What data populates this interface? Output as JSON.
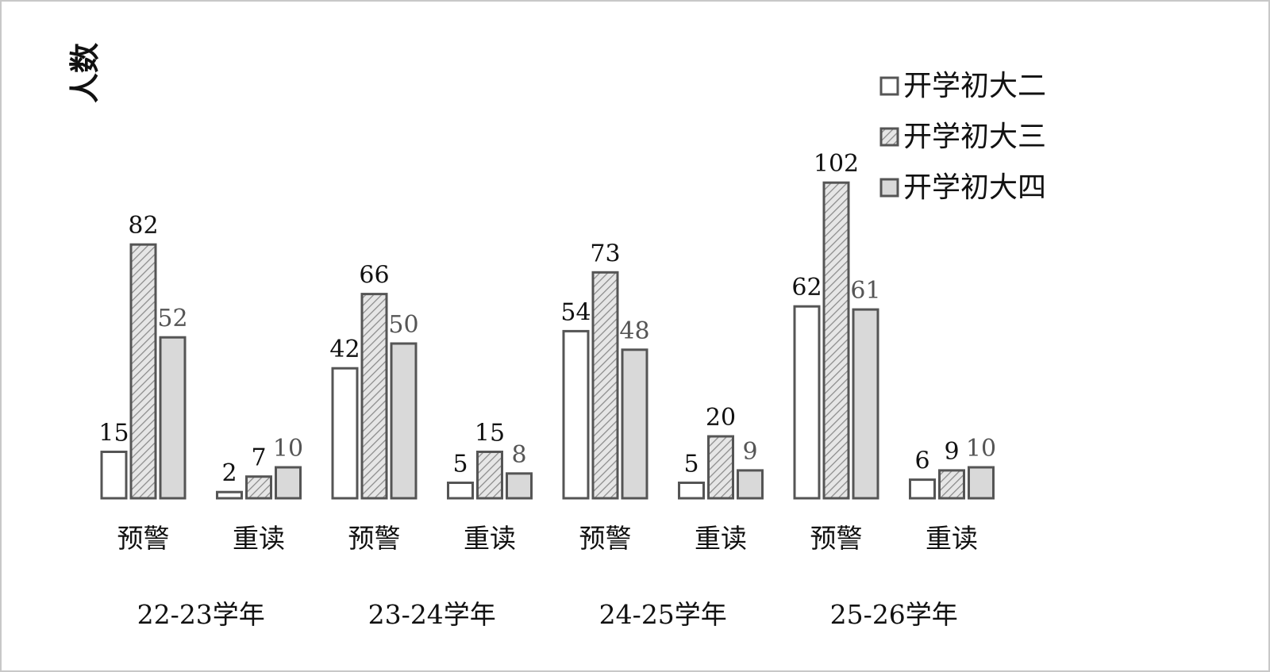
{
  "chart_data": {
    "type": "bar",
    "ylabel": "人数",
    "xlabel": "",
    "groups": [
      "22-23学年",
      "23-24学年",
      "24-25学年",
      "25-26学年"
    ],
    "categories": [
      "预警",
      "重读",
      "预警",
      "重读",
      "预警",
      "重读",
      "预警",
      "重读"
    ],
    "series": [
      {
        "name": "开学初大二",
        "values": [
          15,
          2,
          42,
          5,
          54,
          5,
          62,
          6
        ],
        "fill": "#ffffff",
        "pattern": "none"
      },
      {
        "name": "开学初大三",
        "values": [
          82,
          7,
          66,
          15,
          73,
          20,
          102,
          9
        ],
        "fill": "#d0d0d0",
        "pattern": "diagonal-hatch"
      },
      {
        "name": "开学初大四",
        "values": [
          52,
          10,
          50,
          8,
          48,
          9,
          61,
          10
        ],
        "fill": "#d9d9d9",
        "pattern": "none"
      }
    ],
    "ylim": [
      0,
      110
    ],
    "grid": false,
    "legend_position": "top-right",
    "colors": {
      "bar_stroke": "#555555",
      "frame_stroke": "#c8c8c8",
      "text": "#111111"
    }
  }
}
